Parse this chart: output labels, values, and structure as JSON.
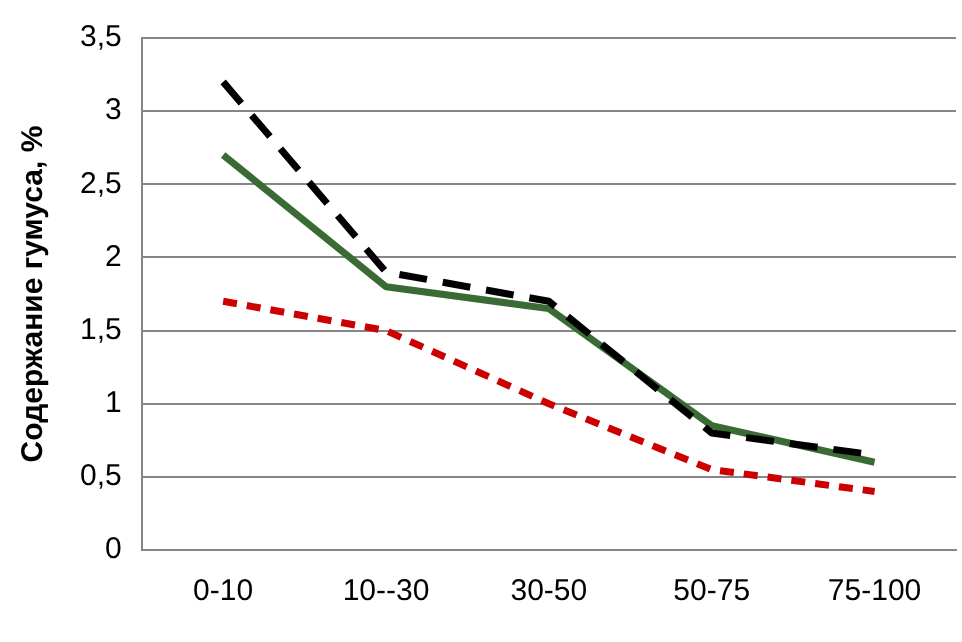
{
  "chart_data": {
    "type": "line",
    "ylabel": "Содержание гумуса, %",
    "categories": [
      "0-10",
      "10--30",
      "30-50",
      "50-75",
      "75-100"
    ],
    "series": [
      {
        "color": "#000000",
        "values": [
          3.2,
          1.9,
          1.7,
          0.8,
          0.65
        ],
        "line_style": "dashed"
      },
      {
        "color": "#cc0000",
        "values": [
          1.7,
          1.5,
          1.0,
          0.55,
          0.4
        ],
        "line_style": "dotted"
      },
      {
        "color": "#3a6b35",
        "values": [
          2.7,
          1.8,
          1.65,
          0.85,
          0.6
        ],
        "line_style": "solid"
      }
    ],
    "ylim": [
      0,
      3.5
    ],
    "yticks": [
      0,
      {
        "value": 0.5,
        "label": "0,5"
      },
      1,
      {
        "value": 1.5,
        "label": "1,5"
      },
      2,
      {
        "value": 2.5,
        "label": "2,5"
      },
      3,
      {
        "value": 3.5,
        "label": "3,5"
      }
    ],
    "grid": "y",
    "legend": false,
    "marker": "none"
  }
}
